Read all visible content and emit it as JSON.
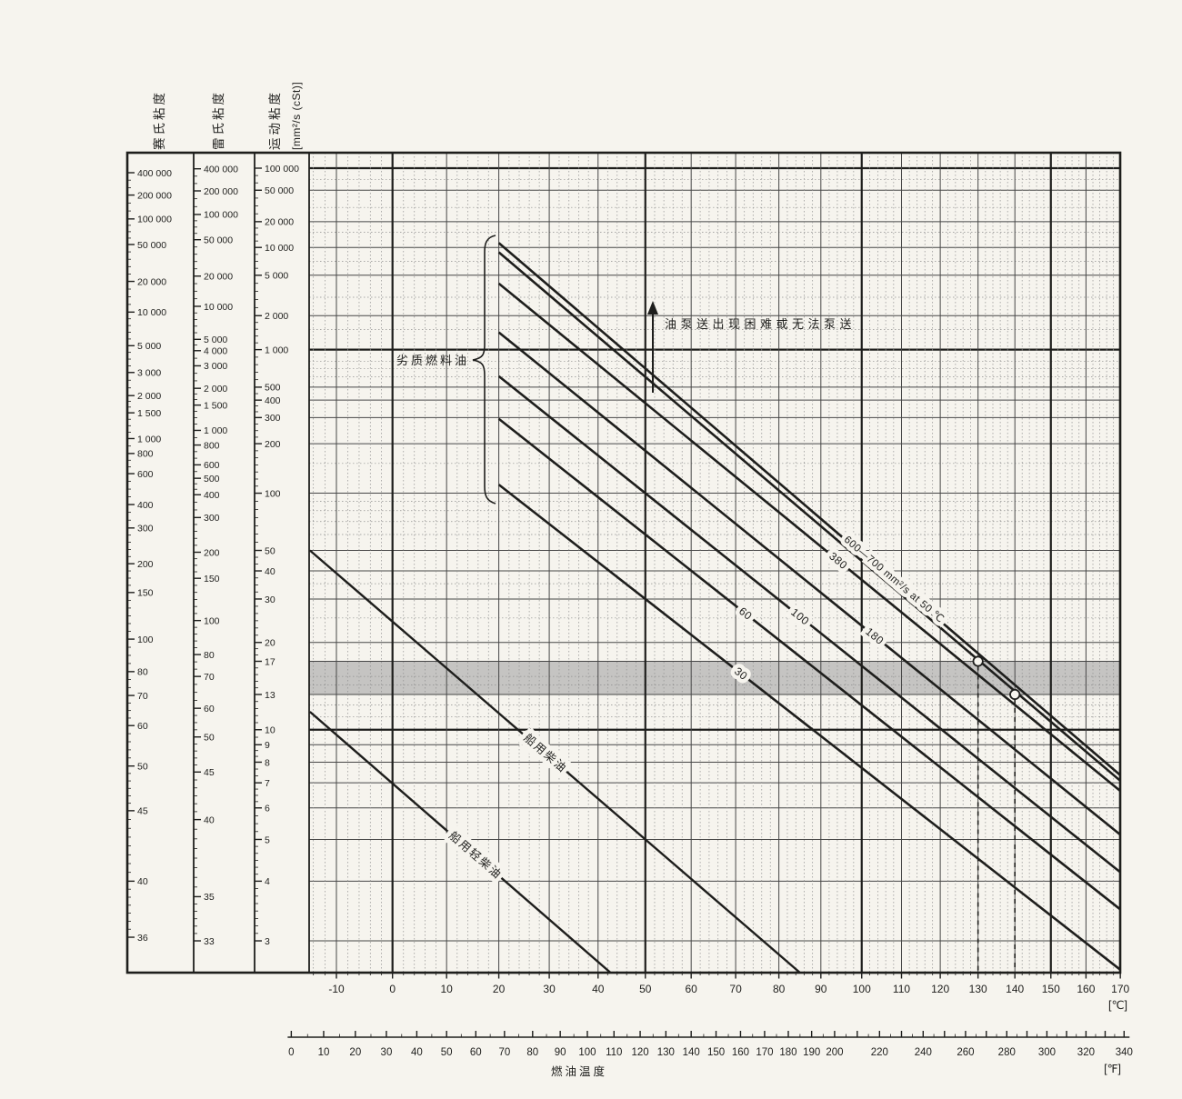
{
  "page": {
    "bg": "#f6f4ee",
    "ink": "#1e1e1c",
    "grid": "#474747",
    "grid_minor": "#8f8f8f",
    "band_color": "#a6a6a6"
  },
  "scales": {
    "saybolt": {
      "header": "赛氏粘度",
      "ticks": [
        {
          "label": "400 000",
          "cst": 86400
        },
        {
          "label": "200 000",
          "cst": 43200
        },
        {
          "label": "100 000",
          "cst": 21600
        },
        {
          "label": "50 000",
          "cst": 10800
        },
        {
          "label": "20 000",
          "cst": 4320
        },
        {
          "label": "10 000",
          "cst": 2160
        },
        {
          "label": "5 000",
          "cst": 1080
        },
        {
          "label": "3 000",
          "cst": 650
        },
        {
          "label": "2 000",
          "cst": 432
        },
        {
          "label": "1 500",
          "cst": 324
        },
        {
          "label": "1 000",
          "cst": 216
        },
        {
          "label": "800",
          "cst": 173
        },
        {
          "label": "600",
          "cst": 130
        },
        {
          "label": "400",
          "cst": 86.4
        },
        {
          "label": "300",
          "cst": 64.8
        },
        {
          "label": "200",
          "cst": 43.2
        },
        {
          "label": "150",
          "cst": 32
        },
        {
          "label": "100",
          "cst": 20.6
        },
        {
          "label": "80",
          "cst": 15.6
        },
        {
          "label": "70",
          "cst": 12.9
        },
        {
          "label": "60",
          "cst": 10.3
        },
        {
          "label": "50",
          "cst": 7.8
        },
        {
          "label": "45",
          "cst": 5.9
        },
        {
          "label": "40",
          "cst": 4.0
        },
        {
          "label": "36",
          "cst": 3.05
        }
      ]
    },
    "redwood": {
      "header": "雷氏粘度",
      "ticks": [
        {
          "label": "400 000",
          "cst": 98000
        },
        {
          "label": "200 000",
          "cst": 49000
        },
        {
          "label": "100 000",
          "cst": 24500
        },
        {
          "label": "50 000",
          "cst": 12250
        },
        {
          "label": "20 000",
          "cst": 4900
        },
        {
          "label": "10 000",
          "cst": 2450
        },
        {
          "label": "5 000",
          "cst": 1225
        },
        {
          "label": "4 000",
          "cst": 980
        },
        {
          "label": "3 000",
          "cst": 735
        },
        {
          "label": "2 000",
          "cst": 490
        },
        {
          "label": "1 500",
          "cst": 368
        },
        {
          "label": "1 000",
          "cst": 245
        },
        {
          "label": "800",
          "cst": 196
        },
        {
          "label": "600",
          "cst": 147
        },
        {
          "label": "500",
          "cst": 122
        },
        {
          "label": "400",
          "cst": 98
        },
        {
          "label": "300",
          "cst": 73.5
        },
        {
          "label": "200",
          "cst": 49
        },
        {
          "label": "150",
          "cst": 37
        },
        {
          "label": "100",
          "cst": 24.4
        },
        {
          "label": "80",
          "cst": 18
        },
        {
          "label": "70",
          "cst": 15
        },
        {
          "label": "60",
          "cst": 11.7
        },
        {
          "label": "50",
          "cst": 9.5
        },
        {
          "label": "45",
          "cst": 7.5
        },
        {
          "label": "40",
          "cst": 5.6
        },
        {
          "label": "35",
          "cst": 3.7
        },
        {
          "label": "33",
          "cst": 3.0
        }
      ]
    },
    "kinematic": {
      "header": "运动粘度",
      "unit": "[mm²/s (cSt)]",
      "ticks": [
        {
          "label": "100 000",
          "v": 100000
        },
        {
          "label": "50 000",
          "v": 50000
        },
        {
          "label": "20 000",
          "v": 20000
        },
        {
          "label": "10 000",
          "v": 10000
        },
        {
          "label": "5 000",
          "v": 5000
        },
        {
          "label": "2 000",
          "v": 2000
        },
        {
          "label": "1 000",
          "v": 1000
        },
        {
          "label": "500",
          "v": 500
        },
        {
          "label": "400",
          "v": 400
        },
        {
          "label": "300",
          "v": 300
        },
        {
          "label": "200",
          "v": 200
        },
        {
          "label": "100",
          "v": 100
        },
        {
          "label": "50",
          "v": 50
        },
        {
          "label": "40",
          "v": 40
        },
        {
          "label": "30",
          "v": 30
        },
        {
          "label": "20",
          "v": 20
        },
        {
          "label": "17",
          "v": 17
        },
        {
          "label": "13",
          "v": 13
        },
        {
          "label": "10",
          "v": 10
        },
        {
          "label": "9",
          "v": 9
        },
        {
          "label": "8",
          "v": 8
        },
        {
          "label": "7",
          "v": 7
        },
        {
          "label": "6",
          "v": 6
        },
        {
          "label": "5",
          "v": 5
        },
        {
          "label": "4",
          "v": 4
        },
        {
          "label": "3",
          "v": 3
        }
      ]
    }
  },
  "axes": {
    "celsius": {
      "ticks": [
        -10,
        0,
        10,
        20,
        30,
        40,
        50,
        60,
        70,
        80,
        90,
        100,
        110,
        120,
        130,
        140,
        150,
        160,
        170
      ],
      "unit": "[℃]"
    },
    "fahrenheit": {
      "tick_step": 10,
      "tick_min": 0,
      "tick_max": 340,
      "labels": [
        0,
        10,
        20,
        30,
        40,
        50,
        60,
        70,
        80,
        90,
        100,
        110,
        120,
        130,
        140,
        150,
        160,
        170,
        180,
        190,
        200,
        220,
        240,
        260,
        280,
        300,
        320,
        340
      ],
      "unit": "[℉]",
      "title": "燃油温度"
    }
  },
  "chart_data": {
    "type": "line",
    "x_axis": {
      "label": "燃油温度",
      "units": [
        "°C",
        "°F"
      ],
      "range_c": [
        -15,
        170
      ],
      "scale": "log of absolute temperature (ASTM D341)"
    },
    "y_axis": {
      "label": "运动粘度",
      "unit": "mm²/s (cSt)",
      "range": [
        3,
        167000
      ],
      "scale": "double-log viscosity (ASTM D341)"
    },
    "grid": {
      "bold_horizontals": [
        100000,
        1000,
        10
      ],
      "minor_horizontals": [
        70000,
        30000,
        15000,
        7000,
        3000,
        1500,
        800,
        700,
        600,
        150,
        90,
        80,
        70,
        60,
        35,
        25,
        15,
        14,
        12,
        11
      ],
      "bold_verticals_c": [
        0,
        50,
        100,
        150
      ],
      "minor_vertical_step_c": 2
    },
    "band": {
      "v_min": 13,
      "v_max": 17
    },
    "heavy_fuel_lines": [
      {
        "grade": "700",
        "v50": 700,
        "v20": 11246,
        "label": ""
      },
      {
        "grade": "600",
        "v50": 600,
        "v20": 8830,
        "label": "600—700 mm²/s at 50 ℃"
      },
      {
        "grade": "380",
        "v50": 380,
        "v20": 4108,
        "label": "380"
      },
      {
        "grade": "180",
        "v50": 180,
        "v20": 1412,
        "label": "180"
      },
      {
        "grade": "100",
        "v50": 100,
        "v20": 607,
        "label": "100"
      },
      {
        "grade": "60",
        "v50": 60,
        "v20": 294,
        "label": "60"
      },
      {
        "grade": "30",
        "v50": 30,
        "v20": 112,
        "label": "30"
      }
    ],
    "diesel_lines": [
      {
        "label": "船用柴油",
        "points": [
          [
            -14.6,
            50
          ],
          [
            50,
            5.0
          ]
        ]
      },
      {
        "label": "船用轻柴油",
        "points": [
          [
            -14.6,
            11.4
          ],
          [
            35,
            3.0
          ]
        ]
      }
    ],
    "guides": [
      {
        "temp_c": 130,
        "viscosity": 17
      },
      {
        "temp_c": 140,
        "viscosity": 13
      }
    ],
    "annotations": {
      "pumping_limit": "油泵送出现困难或无法泵送",
      "poor_fuel": "劣质燃料油"
    }
  }
}
